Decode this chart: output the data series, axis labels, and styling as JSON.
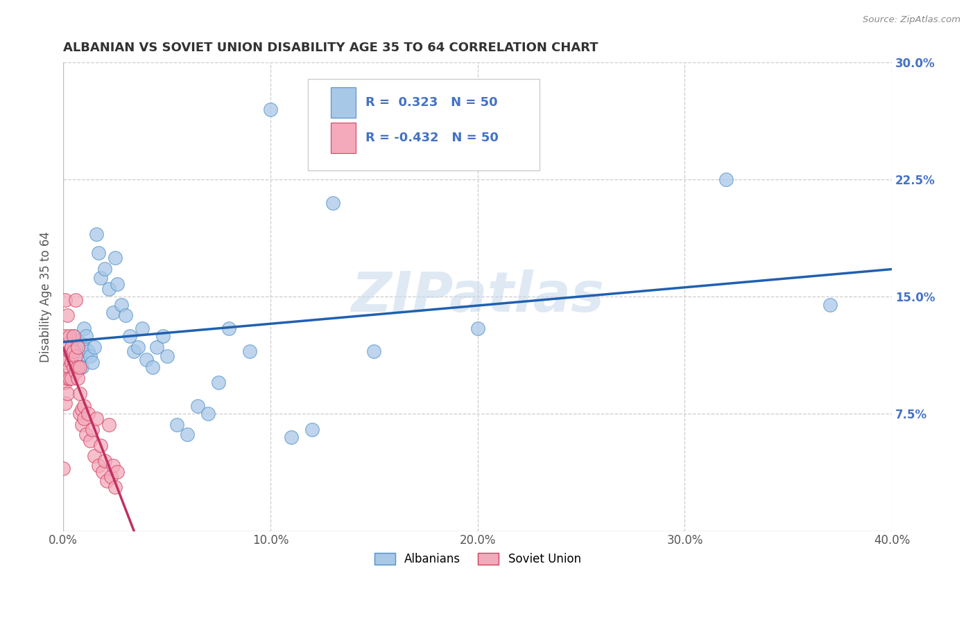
{
  "title": "ALBANIAN VS SOVIET UNION DISABILITY AGE 35 TO 64 CORRELATION CHART",
  "source": "Source: ZipAtlas.com",
  "ylabel": "Disability Age 35 to 64",
  "xlim": [
    0.0,
    0.4
  ],
  "ylim": [
    0.0,
    0.3
  ],
  "xticks": [
    0.0,
    0.1,
    0.2,
    0.3,
    0.4
  ],
  "xtick_labels": [
    "0.0%",
    "10.0%",
    "20.0%",
    "30.0%",
    "40.0%"
  ],
  "yticks": [
    0.0,
    0.075,
    0.15,
    0.225,
    0.3
  ],
  "ytick_labels": [
    "",
    "7.5%",
    "15.0%",
    "22.5%",
    "30.0%"
  ],
  "R_albanian": 0.323,
  "N_albanian": 50,
  "R_soviet": -0.432,
  "N_soviet": 50,
  "watermark": "ZIPatlas",
  "albanian_color": "#A8C8E8",
  "soviet_color": "#F4AABB",
  "albanian_edge_color": "#5090C8",
  "soviet_edge_color": "#D04060",
  "albanian_line_color": "#2060B0",
  "soviet_line_color": "#C03060",
  "background_color": "#FFFFFF",
  "grid_color": "#CCCCCC",
  "title_color": "#333333",
  "right_tick_color": "#4472C4",
  "albanian_x": [
    0.004,
    0.005,
    0.005,
    0.006,
    0.007,
    0.007,
    0.008,
    0.009,
    0.009,
    0.01,
    0.01,
    0.011,
    0.012,
    0.013,
    0.014,
    0.015,
    0.016,
    0.017,
    0.018,
    0.02,
    0.022,
    0.024,
    0.025,
    0.026,
    0.028,
    0.03,
    0.032,
    0.034,
    0.036,
    0.038,
    0.04,
    0.043,
    0.045,
    0.048,
    0.05,
    0.055,
    0.06,
    0.065,
    0.07,
    0.075,
    0.08,
    0.09,
    0.1,
    0.11,
    0.12,
    0.13,
    0.15,
    0.2,
    0.32,
    0.37
  ],
  "albanian_y": [
    0.118,
    0.11,
    0.125,
    0.108,
    0.115,
    0.122,
    0.112,
    0.12,
    0.105,
    0.118,
    0.13,
    0.125,
    0.115,
    0.112,
    0.108,
    0.118,
    0.19,
    0.178,
    0.162,
    0.168,
    0.155,
    0.14,
    0.175,
    0.158,
    0.145,
    0.138,
    0.125,
    0.115,
    0.118,
    0.13,
    0.11,
    0.105,
    0.118,
    0.125,
    0.112,
    0.068,
    0.062,
    0.08,
    0.075,
    0.095,
    0.13,
    0.115,
    0.27,
    0.06,
    0.065,
    0.21,
    0.115,
    0.13,
    0.225,
    0.145
  ],
  "soviet_x": [
    0.0,
    0.001,
    0.001,
    0.001,
    0.001,
    0.001,
    0.002,
    0.002,
    0.002,
    0.002,
    0.002,
    0.003,
    0.003,
    0.003,
    0.003,
    0.004,
    0.004,
    0.004,
    0.005,
    0.005,
    0.005,
    0.006,
    0.006,
    0.006,
    0.007,
    0.007,
    0.007,
    0.008,
    0.008,
    0.008,
    0.009,
    0.009,
    0.01,
    0.01,
    0.011,
    0.012,
    0.013,
    0.014,
    0.015,
    0.016,
    0.017,
    0.018,
    0.019,
    0.02,
    0.021,
    0.022,
    0.023,
    0.024,
    0.025,
    0.026
  ],
  "soviet_y": [
    0.04,
    0.148,
    0.125,
    0.108,
    0.095,
    0.082,
    0.138,
    0.12,
    0.11,
    0.098,
    0.088,
    0.125,
    0.115,
    0.105,
    0.098,
    0.118,
    0.108,
    0.098,
    0.125,
    0.115,
    0.105,
    0.112,
    0.102,
    0.148,
    0.105,
    0.118,
    0.098,
    0.105,
    0.088,
    0.075,
    0.078,
    0.068,
    0.08,
    0.072,
    0.062,
    0.075,
    0.058,
    0.065,
    0.048,
    0.072,
    0.042,
    0.055,
    0.038,
    0.045,
    0.032,
    0.068,
    0.035,
    0.042,
    0.028,
    0.038
  ]
}
